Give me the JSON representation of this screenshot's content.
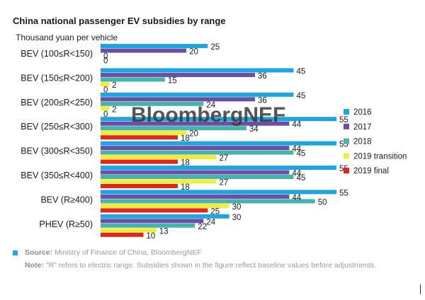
{
  "header": {
    "title": "China national passenger EV subsidies by range",
    "unit": "Thousand yuan per vehicle"
  },
  "watermark": "BloombergNEF",
  "footer": {
    "source_label": "Source:",
    "source_text": " Ministry of Finance of China, BloombergNEF",
    "note_label": "Note:",
    "note_text": " \"R\" refers to electric range. Subsidies shown in the figure reflect baseline values before adjustments."
  },
  "chart_data": {
    "type": "bar",
    "orientation": "horizontal",
    "title": "China national passenger EV subsidies by range",
    "ylabel": "Thousand yuan per vehicle",
    "categories": [
      "BEV (100≤R<150)",
      "BEV (150≤R<200)",
      "BEV (200≤R<250)",
      "BEV (250≤R<300)",
      "BEV (300≤R<350)",
      "BEV (350≤R<400)",
      "BEV (R≥400)",
      "PHEV (R≥50)"
    ],
    "series": [
      {
        "name": "2016",
        "color": "#1ea5e0",
        "values": [
          25,
          45,
          45,
          55,
          55,
          55,
          55,
          30
        ]
      },
      {
        "name": "2017",
        "color": "#6a4fa3",
        "values": [
          20,
          36,
          36,
          44,
          44,
          44,
          44,
          24
        ]
      },
      {
        "name": "2018",
        "color": "#46b4ac",
        "values": [
          0,
          15,
          24,
          34,
          45,
          45,
          50,
          22
        ]
      },
      {
        "name": "2019 transition",
        "color": "#f2ec3a",
        "values": [
          0,
          2,
          2,
          20,
          27,
          27,
          30,
          13
        ]
      },
      {
        "name": "2019 final",
        "color": "#e0261b",
        "values": [
          null,
          0,
          0,
          18,
          18,
          18,
          25,
          10
        ]
      }
    ],
    "xlim": [
      0,
      55
    ],
    "grid": false,
    "legend_position": "right"
  }
}
